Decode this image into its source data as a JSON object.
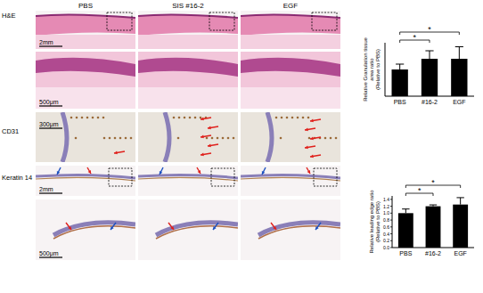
{
  "figure": {
    "columns": [
      "PBS",
      "SIS #16-2",
      "EGF"
    ],
    "rows": [
      "H&E",
      "CD31",
      "Keratin 14"
    ],
    "scale_bars": [
      "2mm",
      "500μm",
      "300μm",
      "2mm",
      "500μm"
    ]
  },
  "chart_data": [
    {
      "type": "bar",
      "y_label": [
        "Relative Granulation tissue",
        "area ratio",
        "(Relative to PBS)"
      ],
      "categories": [
        "PBS",
        "#16-2",
        "EGF"
      ],
      "values": [
        1.0,
        1.4,
        1.4
      ],
      "errors": [
        0.2,
        0.3,
        0.45
      ],
      "color": "#000000",
      "ylim": [
        0,
        2
      ],
      "tick_labels": "x",
      "annotations": [
        "*",
        "*"
      ]
    },
    {
      "type": "bar",
      "y_label": [
        "Relative leading edge ratio",
        "(Relative to PBS)"
      ],
      "categories": [
        "PBS",
        "#16-2",
        "EGF"
      ],
      "values": [
        1.0,
        1.2,
        1.25
      ],
      "errors": [
        0.12,
        0.04,
        0.2
      ],
      "color": "#000000",
      "ylim": [
        0,
        1.5
      ],
      "yticks": [
        {
          "value": 0,
          "label": "0.0"
        },
        {
          "value": 0.2,
          "label": "0.2"
        },
        {
          "value": 0.4,
          "label": "0.4"
        },
        {
          "value": 0.6,
          "label": "0.6"
        },
        {
          "value": 0.8,
          "label": "0.8"
        },
        {
          "value": 1.0,
          "label": "1.0"
        },
        {
          "value": 1.2,
          "label": "1.2"
        },
        {
          "value": 1.4,
          "label": "1.4"
        }
      ],
      "annotations": [
        "*",
        "*"
      ]
    }
  ]
}
